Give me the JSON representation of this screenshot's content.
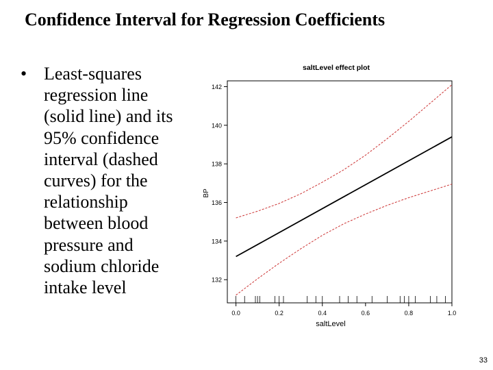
{
  "slide": {
    "title": "Confidence Interval for Regression Coefficients",
    "bullet_symbol": "•",
    "bullet_lines": [
      "Least-squares",
      "regression line",
      "(solid line) and its",
      "95% confidence",
      "interval (dashed",
      "curves) for the",
      "relationship",
      "between blood",
      "pressure and",
      "sodium chloride",
      "intake level"
    ],
    "page_number": "33"
  },
  "chart_data": {
    "type": "line",
    "title": "saltLevel effect plot",
    "xlabel": "saltLevel",
    "ylabel": "BP",
    "xlim": [
      -0.04,
      1.0
    ],
    "ylim": [
      130.8,
      142.3
    ],
    "x_ticks": [
      0.0,
      0.2,
      0.4,
      0.6,
      0.8,
      1.0
    ],
    "x_tick_labels": [
      "0.0",
      "0.2",
      "0.4",
      "0.6",
      "0.8",
      "1.0"
    ],
    "y_ticks": [
      132,
      134,
      136,
      138,
      140,
      142
    ],
    "y_tick_labels": [
      "132",
      "134",
      "136",
      "138",
      "140",
      "142"
    ],
    "series": [
      {
        "name": "fit",
        "style": "solid",
        "color": "#000000",
        "x": [
          0.0,
          1.0
        ],
        "y": [
          133.2,
          139.4
        ]
      },
      {
        "name": "upper 95% CI",
        "style": "dashed",
        "color": "#cc3333",
        "x": [
          0.0,
          0.1,
          0.2,
          0.3,
          0.4,
          0.5,
          0.6,
          0.7,
          0.8,
          0.9,
          1.0
        ],
        "y": [
          135.2,
          135.55,
          135.95,
          136.45,
          137.05,
          137.7,
          138.45,
          139.3,
          140.2,
          141.15,
          142.1
        ]
      },
      {
        "name": "lower 95% CI",
        "style": "dashed",
        "color": "#cc3333",
        "x": [
          0.0,
          0.1,
          0.2,
          0.3,
          0.4,
          0.5,
          0.6,
          0.7,
          0.8,
          0.9,
          1.0
        ],
        "y": [
          131.2,
          132.05,
          132.85,
          133.6,
          134.3,
          134.9,
          135.4,
          135.85,
          136.25,
          136.6,
          136.95
        ]
      }
    ],
    "rug": [
      0.0,
      0.04,
      0.09,
      0.1,
      0.11,
      0.18,
      0.2,
      0.22,
      0.33,
      0.37,
      0.4,
      0.48,
      0.52,
      0.56,
      0.63,
      0.7,
      0.76,
      0.78,
      0.8,
      0.83,
      0.9,
      0.93,
      0.97,
      1.0
    ]
  }
}
